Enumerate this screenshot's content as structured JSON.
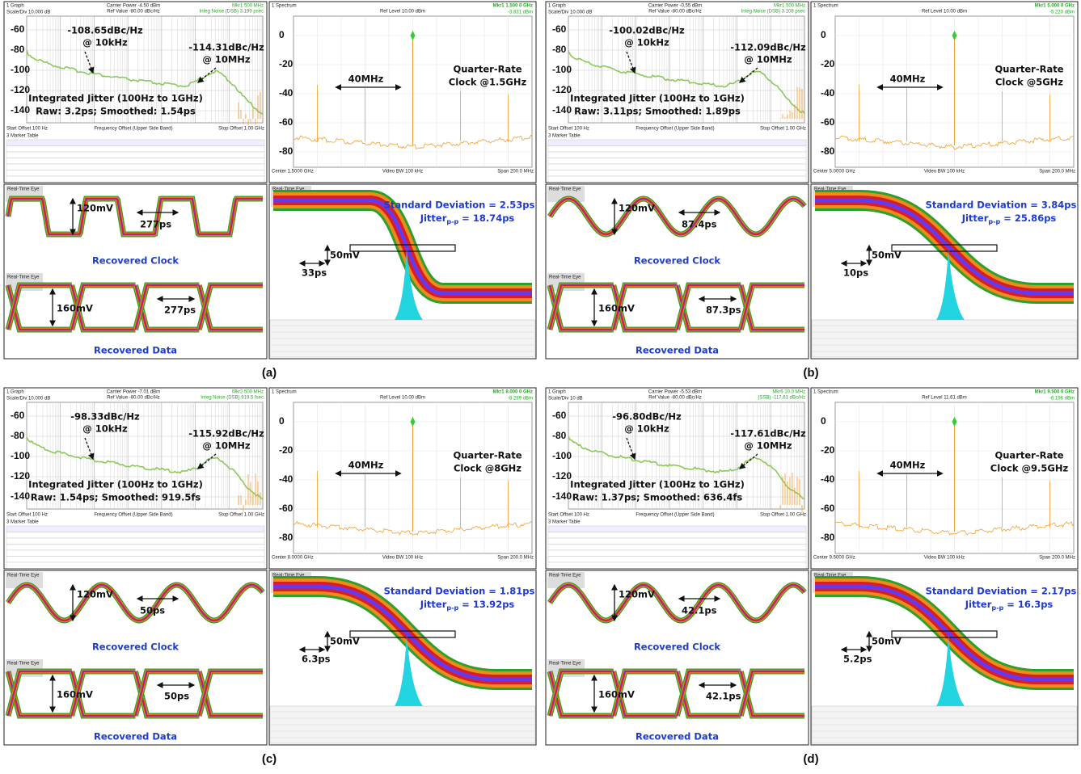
{
  "panels": [
    {
      "label": "(a)",
      "phase_noise": {
        "header": "1 Graph",
        "scale": "Scale/Div 10.000 dB",
        "carrier": "Carrier Power -4.50 dBm",
        "ref": "Ref Value -80.00 dBc/Hz",
        "marker": "Mkr1 500 MHz",
        "integ": "Integ Noise (DSB) 3.199 psec",
        "yticks": [
          -60,
          -80,
          -100,
          -120,
          -140
        ],
        "note1": [
          "-108.65dBc/Hz",
          "@ 10kHz"
        ],
        "note2": [
          "-114.31dBc/Hz",
          "@ 10MHz"
        ],
        "jitter": [
          "Integrated Jitter (100Hz to 1GHz)",
          "Raw: 3.2ps; Smoothed: 1.54ps"
        ],
        "footer_left": "Start Offset 100 Hz",
        "footer_mid": "Frequency Offset (Upper Side Band)",
        "footer_right": "Stop Offset 1.00 GHz",
        "table": "3 Marker Table"
      },
      "spectrum": {
        "header": "1 Spectrum",
        "ref": "Ref Level 10.00 dBm",
        "marker": "Mkr1 1.500 0 GHz",
        "marker_value": "-3.831 dBm",
        "yticks": [
          0,
          -20,
          -40,
          -60,
          -80
        ],
        "span_label": "40MHz",
        "note": [
          "Quarter-Rate",
          "Clock @1.5GHz"
        ],
        "center": "Center 1.5000 GHz",
        "vbw": "Video BW 100 kHz",
        "span": "Span 200.0 MHz"
      },
      "clock_eye": {
        "title": "Real-Time Eye",
        "amp": "120mV",
        "period": "277ps",
        "caption": "Recovered Clock"
      },
      "data_eye": {
        "title": "Real-Time Eye",
        "amp": "160mV",
        "period": "277ps",
        "caption": "Recovered Data"
      },
      "jitter_eye": {
        "title": "Real-Time Eye",
        "std": "Standard Deviation = 2.53ps",
        "jpp": "Jitter",
        "jpp_sub": "p-p",
        "jpp_val": " = 18.74ps",
        "amp": "50mV",
        "time": "33ps"
      }
    },
    {
      "label": "(b)",
      "phase_noise": {
        "header": "1 Graph",
        "scale": "Scale/Div 10.000 dB",
        "carrier": "Carrier Power -0.55 dBm",
        "ref": "Ref Value -80.00 dBc/Hz",
        "marker": "Mkr1 500 MHz",
        "integ": "Integ Noise (DSB) 3.108 psec",
        "yticks": [
          -60,
          -80,
          -100,
          -120,
          -140
        ],
        "note1": [
          "-100.02dBc/Hz",
          "@ 10kHz"
        ],
        "note2": [
          "-112.09dBc/Hz",
          "@ 10MHz"
        ],
        "jitter": [
          "Integrated Jitter (100Hz to 1GHz)",
          "Raw: 3.11ps; Smoothed: 1.89ps"
        ],
        "footer_left": "Start Offset 100 Hz",
        "footer_mid": "Frequency Offset (Upper Side Band)",
        "footer_right": "Stop Offset 1.00 GHz",
        "table": "3 Marker Table"
      },
      "spectrum": {
        "header": "1 Spectrum",
        "ref": "Ref Level 10.00 dBm",
        "marker": "Mkr1 5.000 0 GHz",
        "marker_value": "-5.220 dBm",
        "yticks": [
          0,
          -20,
          -40,
          -60,
          -80
        ],
        "span_label": "40MHz",
        "note": [
          "Quarter-Rate",
          "Clock @5GHz"
        ],
        "center": "Center 5.0000 GHz",
        "vbw": "Video BW 100 kHz",
        "span": "Span 200.0 MHz"
      },
      "clock_eye": {
        "title": "Real-Time Eye",
        "amp": "120mV",
        "period": "87.4ps",
        "caption": "Recovered Clock"
      },
      "data_eye": {
        "title": "Real-Time Eye",
        "amp": "160mV",
        "period": "87.3ps",
        "caption": "Recovered Data"
      },
      "jitter_eye": {
        "title": "Real-Time Eye",
        "std": "Standard Deviation = 3.84ps",
        "jpp": "Jitter",
        "jpp_sub": "p-p",
        "jpp_val": " = 25.86ps",
        "amp": "50mV",
        "time": "10ps"
      }
    },
    {
      "label": "(c)",
      "phase_noise": {
        "header": "1 Graph",
        "scale": "Scale/Div 10.000 dB",
        "carrier": "Carrier Power -7.01 dBm",
        "ref": "Ref Value -80.00 dBc/Hz",
        "marker": "Mkr2 500 MHz",
        "integ": "Integ Noise (DSB) 919.5 fsec",
        "yticks": [
          -60,
          -80,
          -100,
          -120,
          -140
        ],
        "note1": [
          "-98.33dBc/Hz",
          "@ 10kHz"
        ],
        "note2": [
          "-115.92dBc/Hz",
          "@ 10MHz"
        ],
        "jitter": [
          "Integrated Jitter (100Hz to 1GHz)",
          "Raw: 1.54ps; Smoothed: 919.5fs"
        ],
        "footer_left": "Start Offset 100 Hz",
        "footer_mid": "Frequency Offset (Upper Side Band)",
        "footer_right": "Stop Offset 1.00 GHz",
        "table": "3 Marker Table"
      },
      "spectrum": {
        "header": "1 Spectrum",
        "ref": "Ref Level 10.00 dBm",
        "marker": "Mkr1 8.000 0 GHz",
        "marker_value": "-8.289 dBm",
        "yticks": [
          0,
          -20,
          -40,
          -60,
          -80
        ],
        "span_label": "40MHz",
        "note": [
          "Quarter-Rate",
          "Clock @8GHz"
        ],
        "center": "Center 8.0000 GHz",
        "vbw": "Video BW 100 kHz",
        "span": "Span 200.0 MHz"
      },
      "clock_eye": {
        "title": "Real-Time Eye",
        "amp": "120mV",
        "period": "50ps",
        "caption": "Recovered Clock"
      },
      "data_eye": {
        "title": "Real-Time Eye",
        "amp": "160mV",
        "period": "50ps",
        "caption": "Recovered Data"
      },
      "jitter_eye": {
        "title": "Real-Time Eye",
        "std": "Standard Deviation = 1.81ps",
        "jpp": "Jitter",
        "jpp_sub": "p-p",
        "jpp_val": " = 13.92ps",
        "amp": "50mV",
        "time": "6.3ps"
      }
    },
    {
      "label": "(d)",
      "phase_noise": {
        "header": "1 Graph",
        "scale": "Scale/Div 10 dB",
        "carrier": "Carrier Power -5.53 dBm",
        "ref": "Ref Value -80.00 dBc/Hz",
        "marker": "Mkr6 10.0 MHz",
        "integ": "(SSB) -117.61 dBc/Hz",
        "yticks": [
          -60,
          -80,
          -100,
          -120,
          -140
        ],
        "note1": [
          "-96.80dBc/Hz",
          "@ 10kHz"
        ],
        "note2": [
          "-117.61dBc/Hz",
          "@ 10MHz"
        ],
        "jitter": [
          "Integrated Jitter (100Hz to 1GHz)",
          "Raw: 1.37ps; Smoothed: 636.4fs"
        ],
        "footer_left": "Start Offset 100 Hz",
        "footer_mid": "Frequency Offset (Upper Side Band)",
        "footer_right": "Stop Offset 1.00 GHz",
        "table": "3 Marker Table"
      },
      "spectrum": {
        "header": "1 Spectrum",
        "ref": "Ref Level 11.61 dBm",
        "marker": "Mkr1 9.500 0 GHz",
        "marker_value": "-6.196 dBm",
        "yticks": [
          0,
          -20,
          -40,
          -60,
          -80
        ],
        "span_label": "40MHz",
        "note": [
          "Quarter-Rate",
          "Clock @9.5GHz"
        ],
        "center": "Center 9.5000 GHz",
        "vbw": "Video BW 100 kHz",
        "span": "Span 200.0 MHz"
      },
      "clock_eye": {
        "title": "Real-Time Eye",
        "amp": "120mV",
        "period": "42.1ps",
        "caption": "Recovered Clock"
      },
      "data_eye": {
        "title": "Real-Time Eye",
        "amp": "160mV",
        "period": "42.1ps",
        "caption": "Recovered Data"
      },
      "jitter_eye": {
        "title": "Real-Time Eye",
        "std": "Standard Deviation = 2.17ps",
        "jpp": "Jitter",
        "jpp_sub": "p-p",
        "jpp_val": " = 16.3ps",
        "amp": "50mV",
        "time": "5.2ps"
      }
    }
  ]
}
